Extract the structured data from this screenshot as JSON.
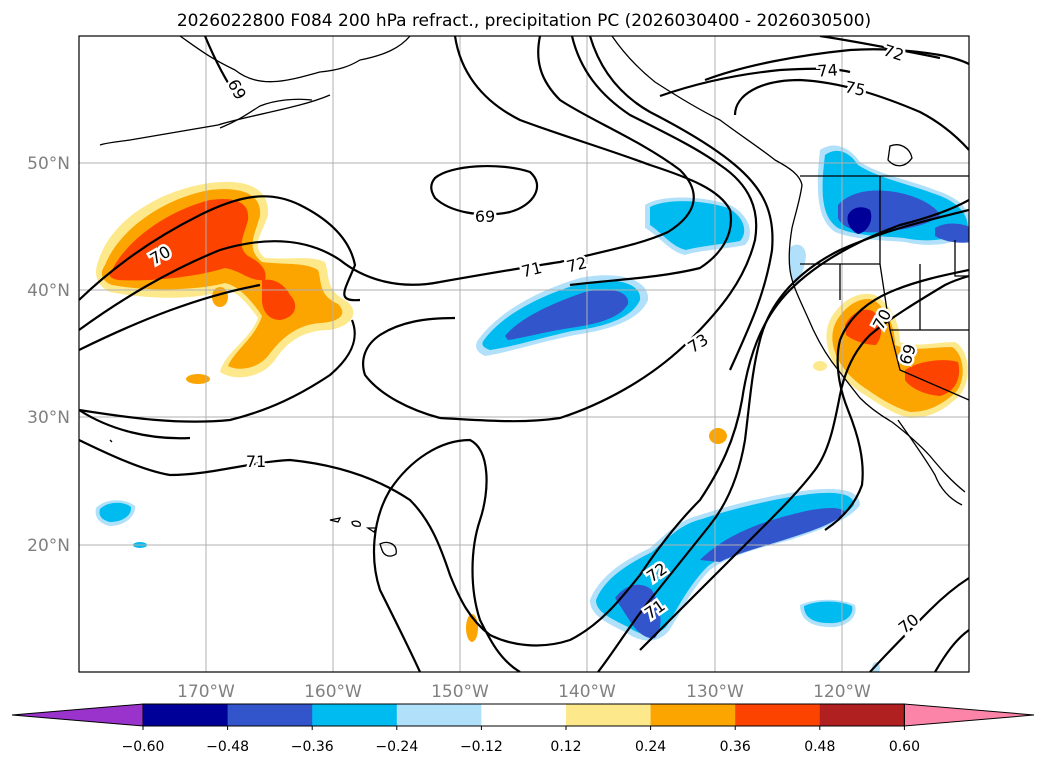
{
  "title": "2026022800 F084 200 hPa refract., precipitation PC (2026030400 - 2026030500)",
  "map": {
    "lat_ticks": [
      "50°N",
      "40°N",
      "30°N",
      "20°N"
    ],
    "lon_ticks": [
      "170°W",
      "160°W",
      "150°W",
      "140°W",
      "130°W",
      "120°W"
    ],
    "extent": {
      "lon_min": -180,
      "lon_max": -110,
      "lat_min": 10,
      "lat_max": 60
    },
    "grid": true
  },
  "contour_labels": [
    "69",
    "69",
    "70",
    "70",
    "70",
    "71",
    "71",
    "71",
    "72",
    "72",
    "72",
    "73",
    "74",
    "75",
    "69"
  ],
  "colorbar": {
    "labels": [
      "−0.60",
      "−0.48",
      "−0.36",
      "−0.24",
      "−0.12",
      "0.12",
      "0.24",
      "0.36",
      "0.48",
      "0.60"
    ],
    "levels": [
      -0.6,
      -0.48,
      -0.36,
      -0.24,
      -0.12,
      0.12,
      0.24,
      0.36,
      0.48,
      0.6
    ],
    "colors": [
      "#9933cc",
      "#000099",
      "#3355cc",
      "#00bbf0",
      "#b0e0fa",
      "#ffffff",
      "#fde98c",
      "#fca400",
      "#fc4400",
      "#b02020",
      "#fc84a8"
    ],
    "extend": "both"
  }
}
